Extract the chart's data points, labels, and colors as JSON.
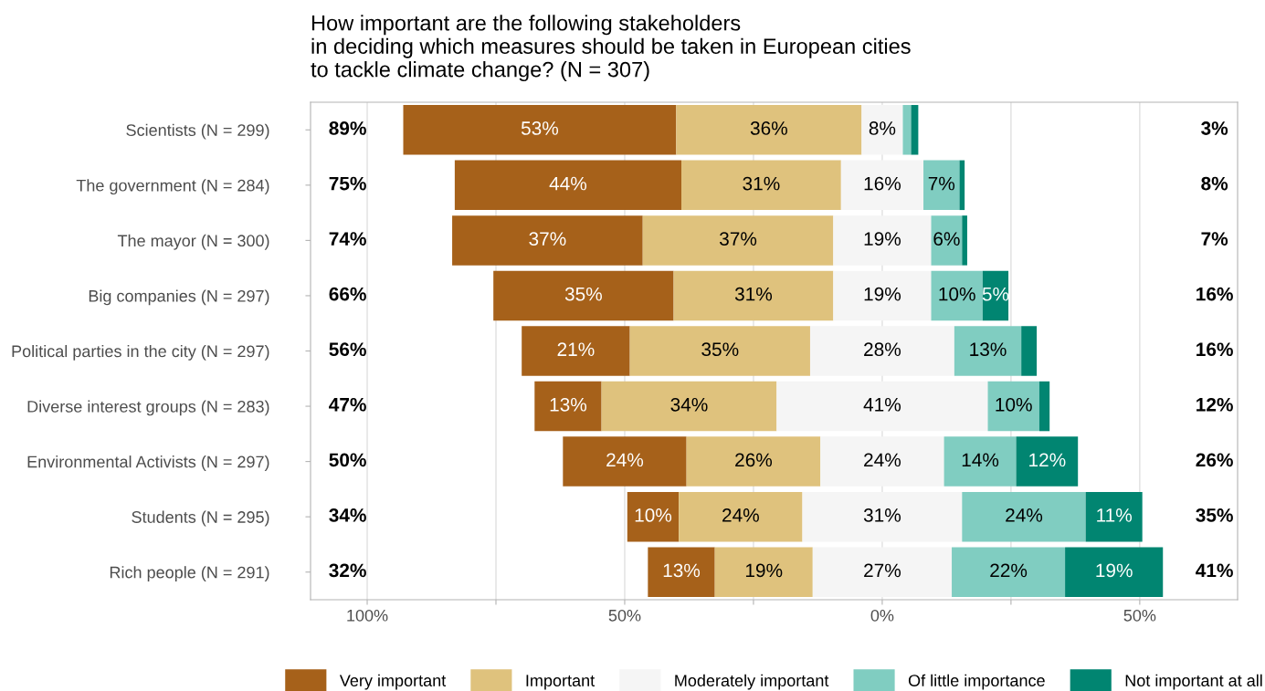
{
  "chart_data": {
    "type": "bar",
    "orientation": "horizontal",
    "title": "How important are the following stakeholders\nin deciding which measures should be taken in European cities\nto tackle climate change? (N = 307)",
    "categories": [
      "Scientists (N = 299)",
      "The government (N = 284)",
      "The mayor (N = 300)",
      "Big companies (N = 297)",
      "Political parties in the city (N = 297)",
      "Diverse interest groups (N = 283)",
      "Environmental Activists (N = 297)",
      "Students (N = 295)",
      "Rich people (N = 291)"
    ],
    "series": [
      {
        "name": "Very important",
        "color": "#a6611a",
        "base": [
          -93,
          -83,
          -83.5,
          -75.5,
          -70,
          -67.5,
          -62,
          -49.5,
          -45.5
        ],
        "values": [
          53,
          44,
          37,
          35,
          21,
          13,
          24,
          10,
          13
        ],
        "value_labels": [
          "53%",
          "44%",
          "37%",
          "35%",
          "21%",
          "13%",
          "24%",
          "10%",
          "13%"
        ]
      },
      {
        "name": "Important",
        "color": "#dfc27d",
        "base": [
          -40,
          -39,
          -46.5,
          -40.5,
          -49,
          -54.5,
          -38,
          -39.5,
          -32.5
        ],
        "values": [
          36,
          31,
          37,
          31,
          35,
          34,
          26,
          24,
          19
        ],
        "value_labels": [
          "36%",
          "31%",
          "37%",
          "31%",
          "35%",
          "34%",
          "26%",
          "24%",
          "19%"
        ]
      },
      {
        "name": "Moderately important",
        "color": "#f5f5f5",
        "base": [
          -4,
          -8,
          -9.5,
          -9.5,
          -14,
          -20.5,
          -12,
          -15.5,
          -13.5
        ],
        "values": [
          8,
          16,
          19,
          19,
          28,
          41,
          24,
          31,
          27
        ],
        "value_labels": [
          "8%",
          "16%",
          "19%",
          "19%",
          "28%",
          "41%",
          "24%",
          "31%",
          "27%"
        ]
      },
      {
        "name": "Of little importance",
        "color": "#80cdc1",
        "base": [
          4,
          8,
          9.5,
          9.5,
          14,
          20.5,
          12,
          15.5,
          13.5
        ],
        "values": [
          1.6,
          7,
          6,
          10,
          13,
          10,
          14,
          24,
          22
        ],
        "value_labels": [
          null,
          "7%",
          "6%",
          "10%",
          "13%",
          "10%",
          "14%",
          "24%",
          "22%"
        ]
      },
      {
        "name": "Not important at all",
        "color": "#018571",
        "base": [
          5.6,
          15,
          15.5,
          19.5,
          27,
          30.5,
          26,
          39.5,
          35.5
        ],
        "values": [
          1.4,
          1,
          1,
          5,
          3,
          2,
          12,
          11,
          19
        ],
        "value_labels": [
          null,
          null,
          null,
          "5%",
          null,
          null,
          "12%",
          "11%",
          "19%"
        ]
      }
    ],
    "annotations": [
      "89%",
      "75%",
      "74%",
      "66%",
      "56%",
      "47%",
      "50%",
      "34%",
      "32%",
      "3%",
      "8%",
      "7%",
      "16%",
      "16%",
      "12%",
      "26%",
      "35%",
      "41%"
    ],
    "xlim": [
      -111,
      69
    ],
    "xticks": [
      {
        "value": -100,
        "label": "100%"
      },
      {
        "value": -75,
        "label": null
      },
      {
        "value": -50,
        "label": "50%"
      },
      {
        "value": -25,
        "label": null
      },
      {
        "value": 0,
        "label": "0%"
      },
      {
        "value": 25,
        "label": null
      },
      {
        "value": 50,
        "label": "50%"
      }
    ],
    "grid": "x",
    "legend": "bottom"
  }
}
